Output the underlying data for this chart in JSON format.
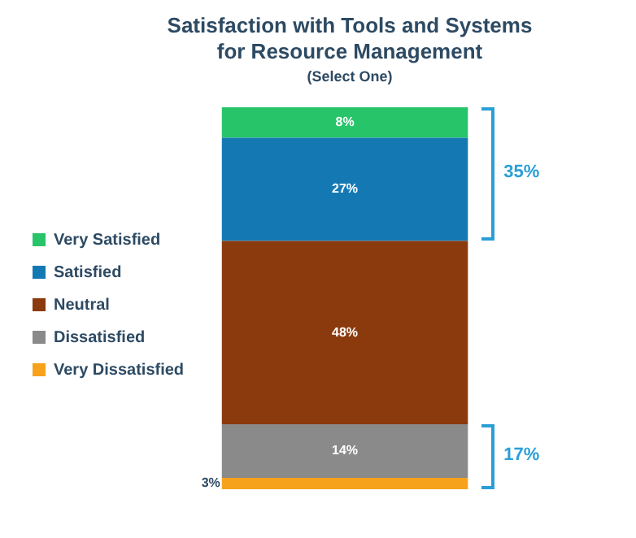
{
  "chart_data": {
    "type": "bar",
    "title": "Satisfaction with Tools and Systems for Resource Management",
    "subtitle": "(Select One)",
    "categories": [
      null
    ],
    "stacked": true,
    "ylim": [
      0,
      100
    ],
    "tick_labels": false,
    "grid": false,
    "legend": "left",
    "series": [
      {
        "name": "Very Dissatisfied",
        "color": "#f7a21b",
        "values": [
          3
        ],
        "value_labels": [
          "3%"
        ]
      },
      {
        "name": "Dissatisfied",
        "color": "#8a8a8a",
        "values": [
          14
        ],
        "value_labels": [
          "14%"
        ]
      },
      {
        "name": "Neutral",
        "color": "#8a3a0c",
        "values": [
          48
        ],
        "value_labels": [
          "48%"
        ]
      },
      {
        "name": "Satisfied",
        "color": "#1479b3",
        "values": [
          27
        ],
        "value_labels": [
          "27%"
        ]
      },
      {
        "name": "Very Satisfied",
        "color": "#27c46a",
        "values": [
          8
        ],
        "value_labels": [
          "8%"
        ]
      }
    ],
    "annotations": [
      "35%",
      "17%"
    ]
  }
}
